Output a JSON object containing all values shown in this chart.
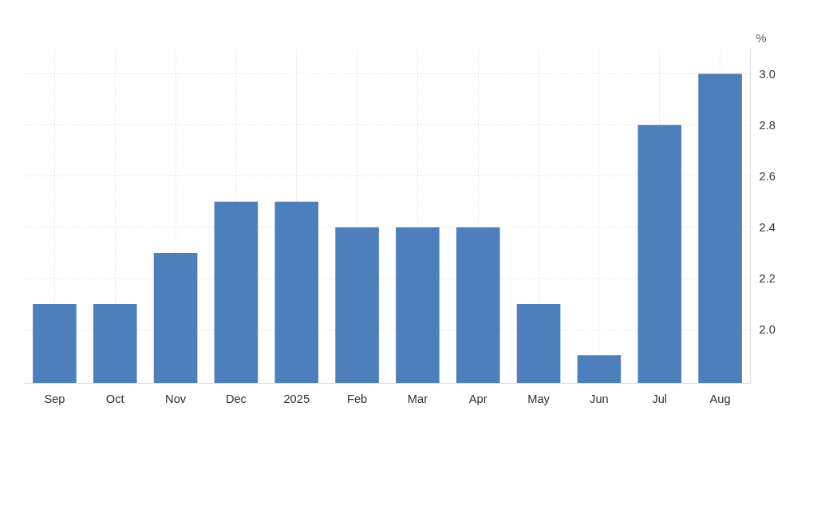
{
  "chart_data": {
    "type": "bar",
    "ylabel": "%",
    "categories": [
      "Sep",
      "Oct",
      "Nov",
      "Dec",
      "2025",
      "Feb",
      "Mar",
      "Apr",
      "May",
      "Jun",
      "Jul",
      "Aug"
    ],
    "values": [
      2.1,
      2.1,
      2.3,
      2.5,
      2.5,
      2.4,
      2.4,
      2.4,
      2.1,
      1.9,
      2.8,
      3.0
    ],
    "color": "#4d7fbd",
    "ylim": [
      1.79,
      3.1
    ],
    "yticks": [
      {
        "value": 2,
        "label": "2.0"
      },
      2.2,
      2.4,
      2.6,
      2.8,
      {
        "value": 3,
        "label": "3.0"
      }
    ],
    "grid": true
  }
}
